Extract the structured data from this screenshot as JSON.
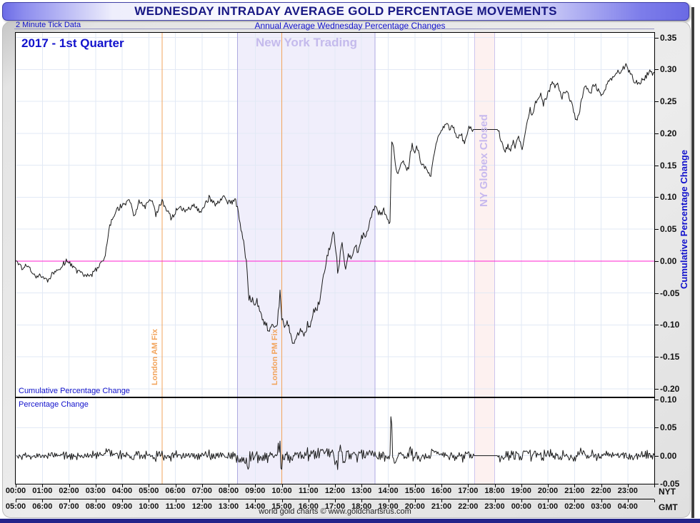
{
  "header": {
    "title": "WEDNESDAY INTRADAY AVERAGE GOLD PERCENTAGE MOVEMENTS",
    "tick_data_label": "2 Minute Tick Data",
    "subtitle_link": "Annual Average Wednesday Percentage Changes"
  },
  "panel_top": {
    "quarter_label": "2017 - 1st Quarter",
    "ny_trading_label": "New York Trading",
    "globex_label": "NY Globex Closed",
    "am_fix_label": "London AM Fix",
    "pm_fix_label": "London PM Fix",
    "corner_label": "Cumulative Percentage Change",
    "right_axis_label": "Cumulative Percentage Change"
  },
  "panel_bottom": {
    "corner_label": "Percentage Change"
  },
  "x_axis": {
    "nyt_suffix": "NYT",
    "gmt_suffix": "GMT",
    "nyt_labels": [
      "00:00",
      "01:00",
      "02:00",
      "03:00",
      "04:00",
      "05:00",
      "06:00",
      "07:00",
      "08:00",
      "09:00",
      "10:00",
      "11:00",
      "12:00",
      "13:00",
      "14:00",
      "15:00",
      "16:00",
      "17:00",
      "18:00",
      "19:00",
      "20:00",
      "21:00",
      "22:00",
      "23:00"
    ],
    "gmt_labels": [
      "05:00",
      "06:00",
      "07:00",
      "08:00",
      "09:00",
      "10:00",
      "11:00",
      "12:00",
      "13:00",
      "14:00",
      "15:00",
      "16:00",
      "17:00",
      "18:00",
      "19:00",
      "20:00",
      "21:00",
      "22:00",
      "23:00",
      "00:00",
      "01:00",
      "02:00",
      "03:00",
      "04:00"
    ]
  },
  "footer": {
    "caption": "world gold charts © www.goldchartsrus.com"
  },
  "colors": {
    "accent_blue": "#1111cc",
    "navy_title": "#181884",
    "series": "#1a1a1a",
    "grid": "#e2e9f5",
    "zero_line": "#ff1fd2",
    "fix_line": "#f2a45c",
    "ny_trading_fill": "#f0eefb",
    "ny_trading_edge": "#aeaae0",
    "ny_trading_text": "#c4baec",
    "globex_fill": "#fdf1f0",
    "globex_edge": "#cdc5ee",
    "globex_text": "#c7b9ee",
    "rule": "#9292c2"
  },
  "chart_data": {
    "type": "line",
    "title": "WEDNESDAY INTRADAY AVERAGE GOLD PERCENTAGE MOVEMENTS",
    "subtitle": "Annual Average Wednesday Percentage Changes - 2017 1st Quarter",
    "x_unit": "minutes_after_00:00_NYT",
    "x_range_minutes": [
      0,
      1440
    ],
    "x_tick_step_minutes": 60,
    "grid": true,
    "legend": "none",
    "annotations": {
      "am_fix_minute": 330,
      "pm_fix_minute": 600,
      "ny_trading_minutes": [
        500,
        810
      ],
      "globex_closed_minutes": [
        1035,
        1080
      ]
    },
    "panels": [
      {
        "name": "cumulative_percentage_change",
        "ylabel": "Cumulative Percentage Change",
        "ylim": [
          -0.2125,
          0.3575
        ],
        "ytick_labels": [
          "0.35",
          "0.30",
          "0.25",
          "0.20",
          "0.15",
          "0.10",
          "0.05",
          "0.00",
          "-0.05",
          "-0.10",
          "-0.15",
          "-0.20"
        ],
        "zero_line": 0.0,
        "flat_segment_minutes": [
          1032,
          1087
        ],
        "noise": {
          "base": 0.0042,
          "busy_window": [
            500,
            840
          ],
          "busy_amp": 0.0065
        },
        "series_anchor_points": [
          [
            0,
            0.0
          ],
          [
            13,
            -0.011
          ],
          [
            29,
            -0.007
          ],
          [
            45,
            -0.026
          ],
          [
            61,
            -0.022
          ],
          [
            72,
            -0.031
          ],
          [
            89,
            -0.015
          ],
          [
            101,
            -0.009
          ],
          [
            114,
            0.0
          ],
          [
            125,
            -0.006
          ],
          [
            141,
            -0.018
          ],
          [
            157,
            -0.022
          ],
          [
            169,
            -0.024
          ],
          [
            182,
            -0.013
          ],
          [
            192,
            -0.005
          ],
          [
            198,
            0.0
          ],
          [
            205,
            0.022
          ],
          [
            211,
            0.055
          ],
          [
            222,
            0.07
          ],
          [
            230,
            0.082
          ],
          [
            246,
            0.09
          ],
          [
            259,
            0.094
          ],
          [
            267,
            0.069
          ],
          [
            279,
            0.095
          ],
          [
            291,
            0.084
          ],
          [
            308,
            0.097
          ],
          [
            316,
            0.073
          ],
          [
            330,
            0.094
          ],
          [
            341,
            0.078
          ],
          [
            351,
            0.067
          ],
          [
            367,
            0.086
          ],
          [
            380,
            0.078
          ],
          [
            395,
            0.085
          ],
          [
            404,
            0.088
          ],
          [
            415,
            0.075
          ],
          [
            436,
            0.099
          ],
          [
            452,
            0.088
          ],
          [
            467,
            0.101
          ],
          [
            477,
            0.091
          ],
          [
            490,
            0.093
          ],
          [
            496,
            0.095
          ],
          [
            502,
            0.075
          ],
          [
            509,
            0.045
          ],
          [
            516,
            0.02
          ],
          [
            520,
            0.0
          ],
          [
            523,
            -0.03
          ],
          [
            526,
            -0.057
          ],
          [
            539,
            -0.067
          ],
          [
            543,
            -0.059
          ],
          [
            555,
            -0.089
          ],
          [
            563,
            -0.098
          ],
          [
            571,
            -0.106
          ],
          [
            575,
            -0.1
          ],
          [
            584,
            -0.104
          ],
          [
            590,
            -0.095
          ],
          [
            594,
            -0.07
          ],
          [
            597,
            -0.042
          ],
          [
            599,
            -0.088
          ],
          [
            605,
            -0.1
          ],
          [
            613,
            -0.093
          ],
          [
            621,
            -0.124
          ],
          [
            629,
            -0.126
          ],
          [
            640,
            -0.107
          ],
          [
            651,
            -0.12
          ],
          [
            658,
            -0.1
          ],
          [
            662,
            -0.108
          ],
          [
            670,
            -0.083
          ],
          [
            680,
            -0.072
          ],
          [
            687,
            -0.059
          ],
          [
            693,
            -0.026
          ],
          [
            698,
            -0.009
          ],
          [
            703,
            0.01
          ],
          [
            710,
            0.028
          ],
          [
            717,
            0.044
          ],
          [
            723,
            0.012
          ],
          [
            727,
            -0.022
          ],
          [
            733,
            0.015
          ],
          [
            736,
            0.03
          ],
          [
            741,
            -0.008
          ],
          [
            743,
            -0.015
          ],
          [
            750,
            0.013
          ],
          [
            757,
            0.002
          ],
          [
            765,
            0.022
          ],
          [
            772,
            0.015
          ],
          [
            780,
            0.038
          ],
          [
            790,
            0.043
          ],
          [
            798,
            0.061
          ],
          [
            806,
            0.078
          ],
          [
            810,
            0.083
          ],
          [
            813,
            0.09
          ],
          [
            818,
            0.075
          ],
          [
            822,
            0.071
          ],
          [
            828,
            0.078
          ],
          [
            833,
            0.08
          ],
          [
            838,
            0.068
          ],
          [
            842,
            0.059
          ],
          [
            845,
            0.064
          ],
          [
            847,
            0.189
          ],
          [
            852,
            0.175
          ],
          [
            856,
            0.15
          ],
          [
            862,
            0.133
          ],
          [
            868,
            0.148
          ],
          [
            875,
            0.155
          ],
          [
            880,
            0.146
          ],
          [
            885,
            0.142
          ],
          [
            890,
            0.168
          ],
          [
            894,
            0.181
          ],
          [
            899,
            0.17
          ],
          [
            904,
            0.183
          ],
          [
            910,
            0.165
          ],
          [
            914,
            0.153
          ],
          [
            920,
            0.15
          ],
          [
            928,
            0.14
          ],
          [
            936,
            0.132
          ],
          [
            942,
            0.164
          ],
          [
            948,
            0.18
          ],
          [
            954,
            0.198
          ],
          [
            962,
            0.205
          ],
          [
            970,
            0.214
          ],
          [
            980,
            0.208
          ],
          [
            988,
            0.211
          ],
          [
            992,
            0.196
          ],
          [
            1000,
            0.196
          ],
          [
            1005,
            0.198
          ],
          [
            1012,
            0.184
          ],
          [
            1018,
            0.196
          ],
          [
            1022,
            0.209
          ],
          [
            1028,
            0.205
          ],
          [
            1032,
            0.206
          ],
          [
            1087,
            0.206
          ],
          [
            1092,
            0.196
          ],
          [
            1098,
            0.18
          ],
          [
            1104,
            0.174
          ],
          [
            1110,
            0.18
          ],
          [
            1116,
            0.176
          ],
          [
            1122,
            0.186
          ],
          [
            1126,
            0.178
          ],
          [
            1130,
            0.19
          ],
          [
            1134,
            0.196
          ],
          [
            1138,
            0.185
          ],
          [
            1142,
            0.177
          ],
          [
            1148,
            0.196
          ],
          [
            1152,
            0.214
          ],
          [
            1156,
            0.228
          ],
          [
            1160,
            0.237
          ],
          [
            1166,
            0.23
          ],
          [
            1172,
            0.25
          ],
          [
            1180,
            0.255
          ],
          [
            1185,
            0.261
          ],
          [
            1190,
            0.246
          ],
          [
            1196,
            0.255
          ],
          [
            1202,
            0.266
          ],
          [
            1210,
            0.279
          ],
          [
            1216,
            0.272
          ],
          [
            1222,
            0.28
          ],
          [
            1228,
            0.262
          ],
          [
            1232,
            0.257
          ],
          [
            1238,
            0.266
          ],
          [
            1245,
            0.265
          ],
          [
            1250,
            0.252
          ],
          [
            1255,
            0.242
          ],
          [
            1260,
            0.23
          ],
          [
            1265,
            0.218
          ],
          [
            1270,
            0.228
          ],
          [
            1275,
            0.248
          ],
          [
            1280,
            0.268
          ],
          [
            1285,
            0.277
          ],
          [
            1290,
            0.27
          ],
          [
            1295,
            0.262
          ],
          [
            1300,
            0.27
          ],
          [
            1305,
            0.277
          ],
          [
            1312,
            0.27
          ],
          [
            1318,
            0.263
          ],
          [
            1325,
            0.262
          ],
          [
            1332,
            0.275
          ],
          [
            1338,
            0.283
          ],
          [
            1344,
            0.287
          ],
          [
            1350,
            0.292
          ],
          [
            1356,
            0.296
          ],
          [
            1362,
            0.293
          ],
          [
            1368,
            0.3
          ],
          [
            1375,
            0.308
          ],
          [
            1380,
            0.302
          ],
          [
            1385,
            0.296
          ],
          [
            1392,
            0.285
          ],
          [
            1398,
            0.28
          ],
          [
            1405,
            0.277
          ],
          [
            1412,
            0.283
          ],
          [
            1418,
            0.286
          ],
          [
            1424,
            0.292
          ],
          [
            1430,
            0.298
          ],
          [
            1434,
            0.301
          ],
          [
            1437,
            0.291
          ],
          [
            1440,
            0.297
          ]
        ]
      },
      {
        "name": "percentage_change",
        "ylabel": "Percentage Change",
        "ylim": [
          -0.05,
          0.1025
        ],
        "ytick_labels": [
          "0.10",
          "0.05",
          "0.00",
          "-0.05"
        ],
        "derived": "first_difference_of_cumulative_per_2_minute_tick",
        "clamp": [
          -0.048,
          0.101
        ],
        "notable_spikes": [
          [
            599,
            -0.045
          ],
          [
            847,
            0.075
          ]
        ]
      }
    ]
  }
}
